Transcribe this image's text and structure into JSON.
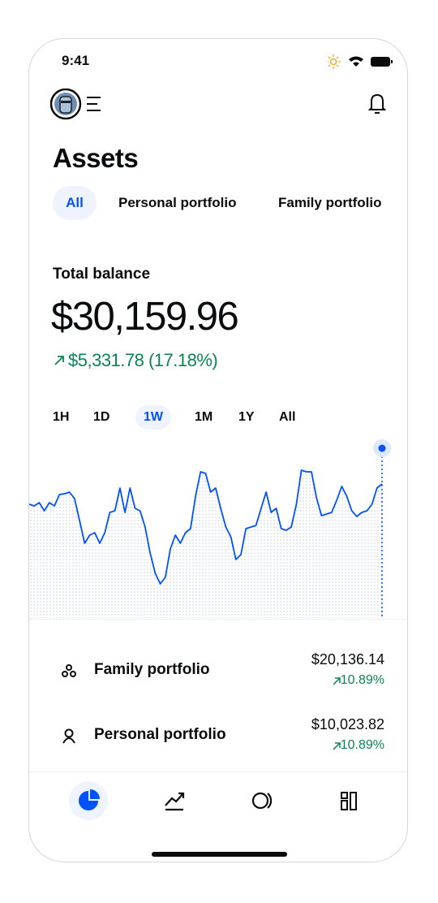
{
  "status": {
    "time": "9:41"
  },
  "header": {
    "title": "Assets"
  },
  "tabs": [
    "All",
    "Personal portfolio",
    "Family portfolio"
  ],
  "balance": {
    "label": "Total balance",
    "amount": "$30,159.96",
    "change": "$5,331.78 (17.18%)"
  },
  "time_ranges": [
    "1H",
    "1D",
    "1W",
    "1M",
    "1Y",
    "All"
  ],
  "chart_data": {
    "type": "line",
    "color": "#0052ff",
    "ylim": [
      0,
      230
    ],
    "values": [
      140,
      138,
      142,
      132,
      142,
      138,
      152,
      153,
      155,
      147,
      120,
      92,
      102,
      105,
      92,
      105,
      130,
      132,
      160,
      130,
      160,
      135,
      132,
      112,
      80,
      55,
      42,
      50,
      85,
      102,
      92,
      105,
      110,
      150,
      180,
      178,
      155,
      160,
      135,
      112,
      100,
      72,
      78,
      110,
      112,
      114,
      135,
      155,
      130,
      135,
      110,
      108,
      112,
      140,
      182,
      180,
      180,
      148,
      126,
      128,
      130,
      145,
      162,
      150,
      132,
      125,
      130,
      132,
      140,
      160,
      165
    ]
  },
  "portfolios": [
    {
      "name": "Family portfolio",
      "amount": "$20,136.14",
      "change": "10.89%"
    },
    {
      "name": "Personal portfolio",
      "amount": "$10,023.82",
      "change": "10.89%"
    }
  ]
}
